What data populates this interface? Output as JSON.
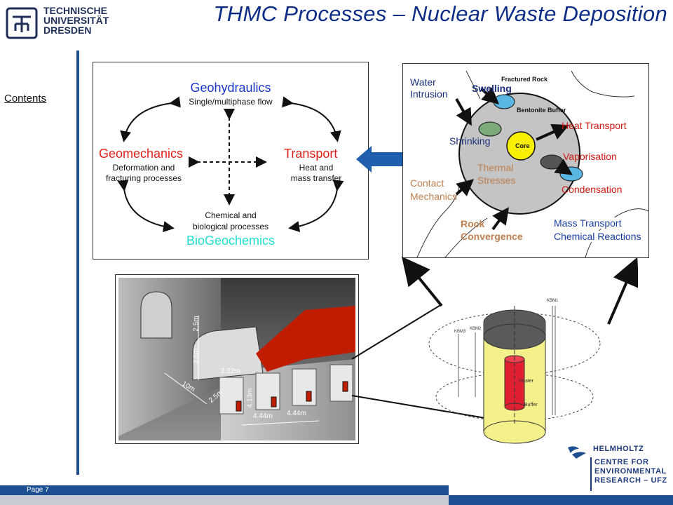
{
  "header": {
    "title": "THMC Processes – Nuclear Waste Deposition",
    "logo_lines": [
      "TECHNISCHE",
      "UNIVERSITÄT",
      "DRESDEN"
    ]
  },
  "sidebar": {
    "contents_link": "Contents"
  },
  "thmc_diagram": {
    "geohydraulics": "Geohydraulics",
    "geohydraulics_sub": "Single/multiphase flow",
    "geomechanics": "Geomechanics",
    "geomechanics_sub1": "Deformation and",
    "geomechanics_sub2": "fracturing processes",
    "transport": "Transport",
    "transport_sub1": "Heat and",
    "transport_sub2": "mass transfer",
    "biogeo_sub1": "Chemical and",
    "biogeo_sub2": "biological processes",
    "biogeochemics": "BioGeochemics",
    "colors": {
      "blue": "#1a35c8",
      "red": "#e0201a",
      "cyan": "#20e0d0"
    }
  },
  "processes_diagram": {
    "water_intrusion1": "Water",
    "water_intrusion2": "Intrusion",
    "swelling": "Swelling",
    "fractured_rock": "Fractured Rock",
    "bentonite_buffer": "Bentonite Buffer",
    "shrinking": "Shrinking",
    "core": "Core",
    "heat_transport": "Heat Transport",
    "vaporisation": "Vaporisation",
    "condensation": "Condensation",
    "thermal1": "Thermal",
    "thermal2": "Stresses",
    "contact1": "Contact",
    "contact2": "Mechanics",
    "rock1": "Rock",
    "rock2": "Convergence",
    "mass_transport": "Mass Transport",
    "chemical_reactions": "Chemical Reactions"
  },
  "tunnel_diagram": {
    "dim_25a": "2.5m",
    "dim_25b": "2.5m",
    "dim_22": "2.22m",
    "dim_10": "10m",
    "dim_25c": "2.5m",
    "dim_413": "4.13m",
    "dim_444a": "4.44m",
    "dim_444b": "4.44m"
  },
  "borehole_diagram": {
    "heater": "Heater",
    "buffer": "Buffer",
    "kbm1": "KBM1",
    "kbm2": "KBM2",
    "kbm3": "KBM3"
  },
  "footer": {
    "page_label": "Page 7",
    "helmholtz": "HELMHOLTZ",
    "ufz_lines": [
      "CENTRE FOR",
      "ENVIRONMENTAL",
      "RESEARCH – UFZ"
    ]
  }
}
